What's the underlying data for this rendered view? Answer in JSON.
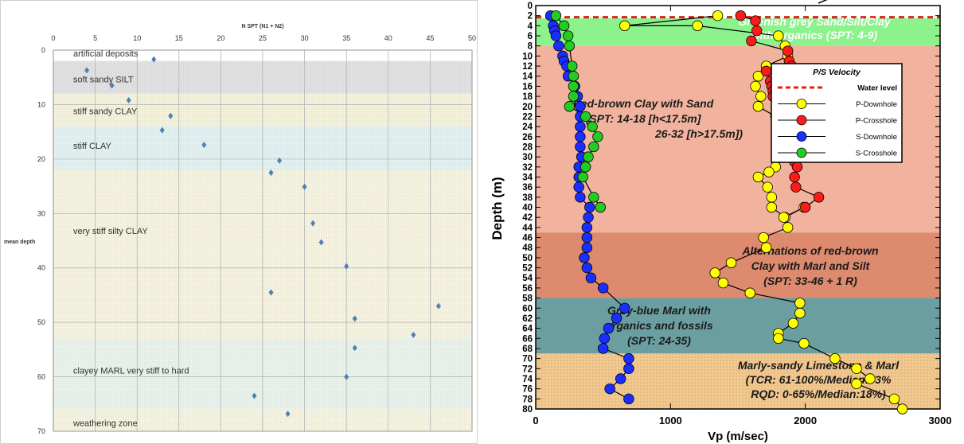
{
  "chart_data": [
    {
      "type": "scatter",
      "title": "N SPT (N1 + N2)",
      "ylabel": "mean depth",
      "xlim": [
        0,
        50
      ],
      "ylim": [
        0,
        70
      ],
      "x_ticks": [
        "0",
        "5",
        "10",
        "15",
        "20",
        "25",
        "30",
        "35",
        "40",
        "45",
        "50"
      ],
      "y_ticks": [
        "0",
        "10",
        "20",
        "30",
        "40",
        "50",
        "60",
        "70"
      ],
      "layers": [
        {
          "name": "artificial deposits",
          "top": 0,
          "bottom": 2,
          "color": "#ffffff"
        },
        {
          "name": "soft sandy SILT",
          "top": 2,
          "bottom": 8,
          "color": "#e2e2e4"
        },
        {
          "name": "stiff sandy CLAY",
          "top": 8,
          "bottom": 14,
          "color": "#f6f3dc"
        },
        {
          "name": "stiff CLAY",
          "top": 14,
          "bottom": 22,
          "color": "#e3f2f2"
        },
        {
          "name": "very stiff silty CLAY",
          "top": 22,
          "bottom": 53,
          "color": "#f7f4e1"
        },
        {
          "name": "clayey MARL very stiff to hard",
          "top": 53,
          "bottom": 66,
          "color": "#eaf4ec"
        },
        {
          "name": "weathering zone",
          "top": 66,
          "bottom": 70,
          "color": "#f7f4e1"
        }
      ],
      "layer_label_depths": [
        0.6,
        5.3,
        11.2,
        17.5,
        33.2,
        58.8,
        68.5
      ],
      "points": [
        {
          "x": 12,
          "y": 1.7
        },
        {
          "x": 4,
          "y": 3.7
        },
        {
          "x": 7,
          "y": 6.5
        },
        {
          "x": 9,
          "y": 9.2
        },
        {
          "x": 14,
          "y": 12.1
        },
        {
          "x": 13,
          "y": 14.7
        },
        {
          "x": 18,
          "y": 17.4
        },
        {
          "x": 27,
          "y": 20.3
        },
        {
          "x": 26,
          "y": 22.5
        },
        {
          "x": 30,
          "y": 25.1
        },
        {
          "x": 31,
          "y": 31.8
        },
        {
          "x": 32,
          "y": 35.3
        },
        {
          "x": 35,
          "y": 39.7
        },
        {
          "x": 26,
          "y": 44.5
        },
        {
          "x": 46,
          "y": 47
        },
        {
          "x": 36,
          "y": 49.3
        },
        {
          "x": 43,
          "y": 52.3
        },
        {
          "x": 36,
          "y": 54.7
        },
        {
          "x": 35,
          "y": 60
        },
        {
          "x": 24,
          "y": 63.5
        },
        {
          "x": 28,
          "y": 66.8
        }
      ]
    },
    {
      "type": "line",
      "xlabel": "Vp (m/sec)",
      "ylabel": "Depth (m)",
      "xlim": [
        0,
        3000
      ],
      "ylim": [
        0,
        80
      ],
      "x_ticks": [
        "0",
        "1000",
        "2000",
        "3000"
      ],
      "y_ticks": [
        "0",
        "2",
        "4",
        "6",
        "8",
        "10",
        "12",
        "14",
        "16",
        "18",
        "20",
        "22",
        "24",
        "26",
        "28",
        "30",
        "32",
        "34",
        "36",
        "38",
        "40",
        "42",
        "44",
        "46",
        "48",
        "50",
        "52",
        "54",
        "56",
        "58",
        "60",
        "62",
        "64",
        "66",
        "68",
        "70",
        "72",
        "74",
        "76",
        "78",
        "80"
      ],
      "water_level": 2.3,
      "layers": [
        {
          "name": "green-sand",
          "top": 2.5,
          "bottom": 8,
          "color": "#8cf28c"
        },
        {
          "name": "red-brown-clay",
          "top": 8,
          "bottom": 45,
          "color": "#f2b39e"
        },
        {
          "name": "alternations",
          "top": 45,
          "bottom": 58,
          "color": "#dd8a6e"
        },
        {
          "name": "grey-blue-marl",
          "top": 58,
          "bottom": 69,
          "color": "#6b9ea1"
        },
        {
          "name": "limestone",
          "top": 69,
          "bottom": 80,
          "color": "#f2c88e"
        }
      ],
      "annotations": [
        {
          "lines": [
            "Greenish grey Sand/Silt/Clay",
            "with organics (SPT: 4-9)"
          ],
          "color": "#ffffff"
        },
        {
          "lines": [
            "Red-brown Clay with Sand",
            "(SPT: 14-18 [h<17.5m]",
            "26-32 [h>17.5m])"
          ],
          "color": "#1a1a1a"
        },
        {
          "lines": [
            "Alternations of red-brown",
            "Clay with Marl and Silt",
            "(SPT: 33-46 + 1 R)"
          ],
          "color": "#1a1a1a"
        },
        {
          "lines": [
            "Grey-blue Marl with",
            "organics and fossils",
            "(SPT: 24-35)"
          ],
          "color": "#1a1a1a"
        },
        {
          "lines": [
            "Marly-sandy Limestone & Marl",
            "(TCR: 61-100%/Median:73%",
            "RQD: 0-65%/Median:18%)"
          ],
          "color": "#1a1a1a"
        }
      ],
      "legend": {
        "title": "P/S Velocity",
        "placement": "upper-right",
        "items": [
          {
            "name": "Water level",
            "color": "#e0201a",
            "dashed": true
          },
          {
            "name": "P-Downhole",
            "color": "#ffff00"
          },
          {
            "name": "P-Crosshole",
            "color": "#ff1a1a"
          },
          {
            "name": "S-Downhole",
            "color": "#1a2fff"
          },
          {
            "name": "S-Crosshole",
            "color": "#22cc22"
          }
        ]
      },
      "series": [
        {
          "name": "P-Downhole",
          "color": "#ffff00",
          "x": [
            1350,
            660,
            1200,
            1800,
            1850,
            1870,
            1710,
            1650,
            1630,
            1670,
            1650,
            1780,
            1990,
            1830,
            1850,
            1830,
            1850,
            1780,
            1730,
            1650,
            1720,
            1750,
            1750,
            1850,
            1990,
            1840,
            1870,
            1690,
            1710,
            1450,
            1330,
            1390,
            1590,
            1960,
            1960,
            1910,
            1800,
            1800,
            1990,
            2220,
            2380,
            2480,
            2380,
            2660,
            2720
          ],
          "y": [
            2,
            4,
            4,
            6,
            8,
            10,
            12,
            14,
            16,
            18,
            20,
            22,
            23,
            24,
            26,
            28,
            30,
            32,
            33,
            34,
            36,
            38,
            40,
            42,
            40,
            42,
            44,
            46,
            48,
            51,
            53,
            55,
            57,
            59,
            61,
            63,
            65,
            66,
            67,
            70,
            72,
            74,
            75,
            78,
            80
          ]
        },
        {
          "name": "P-Crosshole",
          "color": "#ff1a1a",
          "x": [
            1520,
            1630,
            1640,
            1600,
            1870,
            1880,
            1900,
            1710,
            1740,
            1750,
            1760,
            1760,
            1940,
            1810,
            1830,
            1800,
            1880,
            1920,
            1940,
            1920,
            1930,
            2100,
            2000
          ],
          "y": [
            2,
            3,
            5,
            7,
            9,
            11,
            12,
            13,
            15,
            16,
            17,
            18,
            20,
            22,
            24,
            26,
            28,
            31,
            32,
            34,
            36,
            38,
            40
          ]
        },
        {
          "name": "S-Downhole",
          "color": "#1a2fff",
          "x": [
            110,
            130,
            140,
            150,
            170,
            200,
            210,
            230,
            240,
            290,
            310,
            330,
            330,
            330,
            330,
            330,
            340,
            320,
            320,
            320,
            330,
            400,
            390,
            380,
            380,
            380,
            360,
            380,
            410,
            500,
            660,
            600,
            540,
            510,
            500,
            690,
            690,
            630,
            550,
            690
          ],
          "y": [
            2,
            4,
            5,
            6,
            8,
            10,
            11,
            12,
            14,
            16,
            18,
            20,
            22,
            24,
            26,
            28,
            30,
            32,
            34,
            36,
            38,
            40,
            42,
            44,
            46,
            48,
            50,
            52,
            54,
            56,
            60,
            62,
            64,
            66,
            68,
            70,
            72,
            74,
            76,
            78
          ]
        },
        {
          "name": "S-Crosshole",
          "color": "#22cc22",
          "x": [
            150,
            210,
            240,
            250,
            270,
            280,
            280,
            280,
            250,
            370,
            420,
            460,
            430,
            390,
            370,
            350,
            430,
            480
          ],
          "y": [
            2,
            4,
            6,
            8,
            12,
            14,
            16,
            18,
            20,
            22,
            24,
            26,
            28,
            30,
            32,
            34,
            38,
            40
          ]
        }
      ]
    }
  ]
}
